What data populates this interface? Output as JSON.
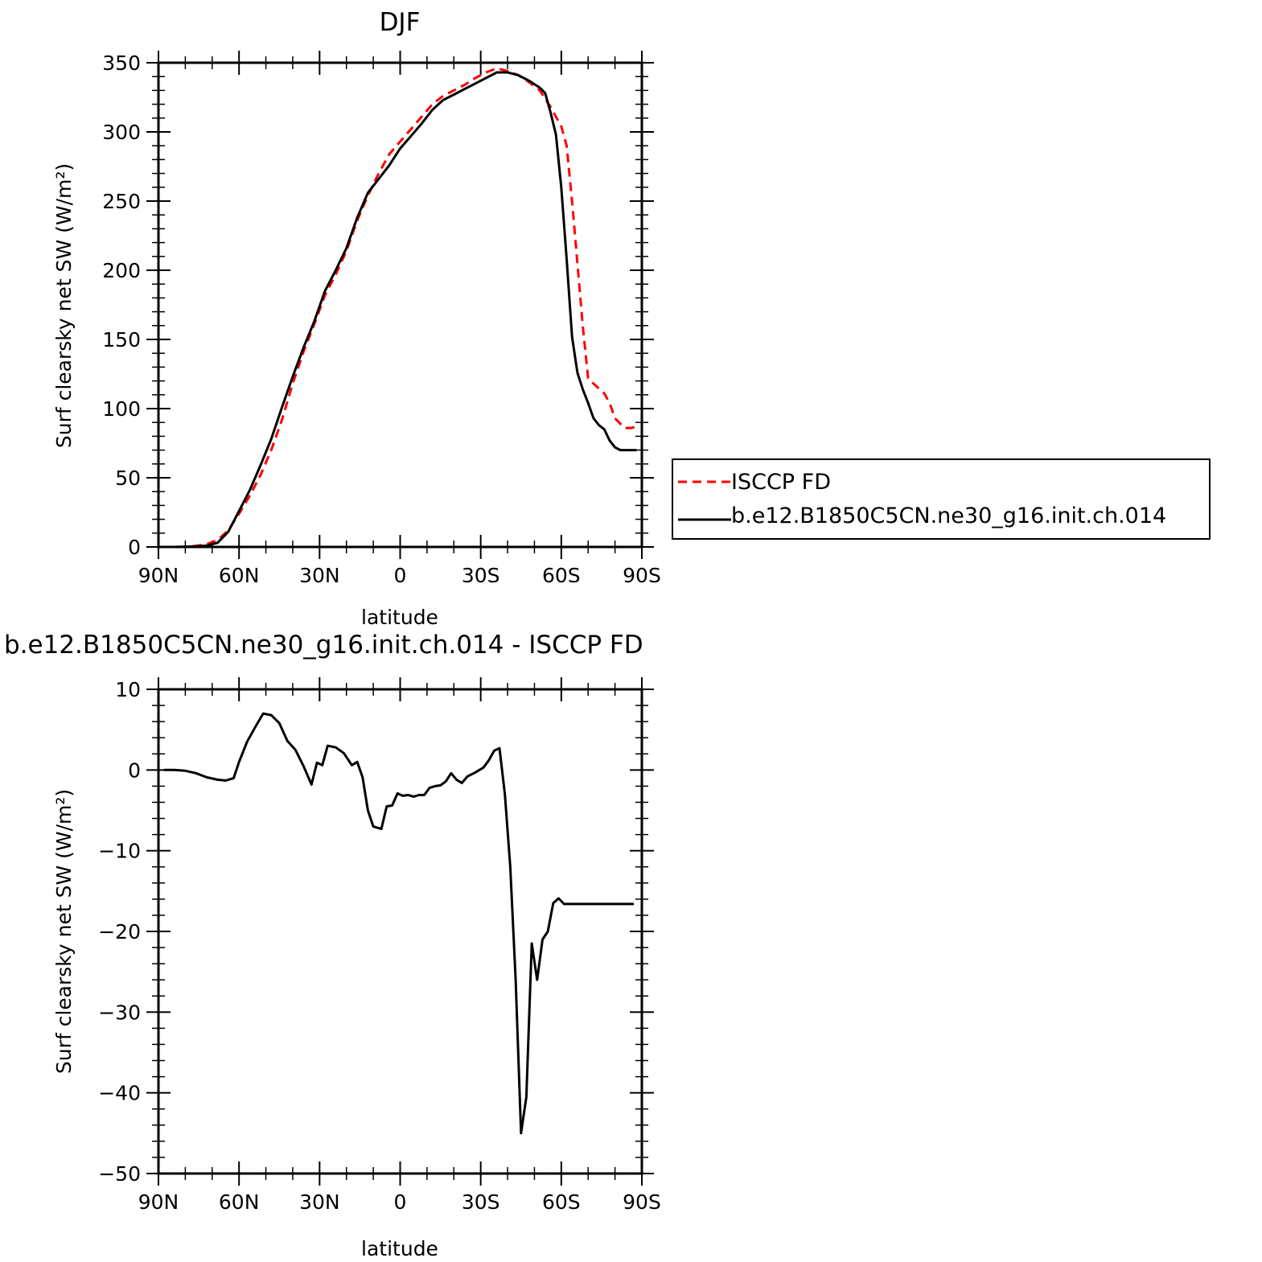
{
  "chart_data": [
    {
      "type": "line",
      "title": "DJF",
      "xlabel": "latitude",
      "ylabel": "Surf clearsky net SW (W/m²)",
      "xlim": [
        -90,
        90
      ],
      "ylim": [
        0,
        350
      ],
      "xticks": [
        -90,
        -60,
        -30,
        0,
        30,
        60,
        90
      ],
      "xtick_labels": [
        "90N",
        "60N",
        "30N",
        "0",
        "30S",
        "60S",
        "90S"
      ],
      "yticks": [
        0,
        50,
        100,
        150,
        200,
        250,
        300,
        350
      ],
      "ytick_labels": [
        "0",
        "50",
        "100",
        "150",
        "200",
        "250",
        "300",
        "350"
      ],
      "grid": false,
      "legend_position": "right",
      "series": [
        {
          "name": "ISCCP FD",
          "color": "#ff0000",
          "dash": "dashed",
          "x": [
            -88,
            -84,
            -80,
            -76,
            -72,
            -68,
            -64,
            -60,
            -56,
            -52,
            -48,
            -44,
            -40,
            -36,
            -32,
            -28,
            -24,
            -20,
            -16,
            -12,
            -8,
            -4,
            0,
            4,
            8,
            12,
            16,
            20,
            24,
            28,
            32,
            36,
            40,
            44,
            48,
            52,
            56,
            60,
            62,
            64,
            66,
            68,
            70,
            72,
            76,
            78,
            80,
            82,
            84,
            86,
            88
          ],
          "y": [
            0,
            0,
            0.2,
            0.8,
            2,
            5,
            12,
            24,
            37,
            52,
            70,
            92,
            118,
            141,
            161,
            182,
            197,
            214,
            236,
            254,
            270,
            284,
            293,
            302,
            311,
            320,
            326,
            330,
            334,
            339,
            343,
            346,
            344,
            341,
            336,
            330,
            318,
            304,
            290,
            250,
            205,
            160,
            122,
            118,
            111,
            104,
            93,
            89,
            86,
            86,
            87
          ]
        },
        {
          "name": "b.e12.B1850C5CN.ne30_g16.init.ch.014",
          "color": "#000000",
          "dash": "solid",
          "x": [
            -88,
            -84,
            -80,
            -76,
            -72,
            -68,
            -64,
            -60,
            -56,
            -52,
            -48,
            -44,
            -40,
            -36,
            -32,
            -28,
            -24,
            -20,
            -16,
            -12,
            -8,
            -4,
            0,
            4,
            8,
            12,
            16,
            20,
            24,
            28,
            32,
            36,
            40,
            44,
            48,
            52,
            54,
            56,
            58,
            60,
            62,
            64,
            66,
            68,
            70,
            72,
            74,
            76,
            78,
            80,
            82,
            84,
            86,
            88
          ],
          "y": [
            0,
            0,
            0.2,
            0.4,
            1,
            3,
            11,
            26,
            41,
            59,
            78,
            101,
            123,
            144,
            163,
            185,
            200,
            216,
            238,
            256,
            266,
            276,
            288,
            297,
            306,
            316,
            323,
            327,
            331,
            335,
            339,
            343,
            343,
            341,
            337,
            332,
            328,
            314,
            298,
            260,
            208,
            152,
            126,
            114,
            104,
            93,
            88,
            85,
            77,
            72,
            70,
            70,
            70,
            70
          ]
        }
      ]
    },
    {
      "type": "line",
      "title": "b.e12.B1850C5CN.ne30_g16.init.ch.014 - ISCCP FD",
      "xlabel": "latitude",
      "ylabel": "Surf clearsky net SW (W/m²)",
      "xlim": [
        -90,
        90
      ],
      "ylim": [
        -50,
        10
      ],
      "xticks": [
        -90,
        -60,
        -30,
        0,
        30,
        60,
        90
      ],
      "xtick_labels": [
        "90N",
        "60N",
        "30N",
        "0",
        "30S",
        "60S",
        "90S"
      ],
      "yticks": [
        -50,
        -40,
        -30,
        -20,
        -10,
        0,
        10
      ],
      "ytick_labels": [
        "−50",
        "−40",
        "−30",
        "−20",
        "−10",
        "0",
        "10"
      ],
      "grid": false,
      "series": [
        {
          "color": "#000000",
          "dash": "solid",
          "x": [
            -88,
            -84,
            -80,
            -76,
            -72,
            -68,
            -65,
            -62,
            -60,
            -57,
            -54,
            -51,
            -48,
            -45,
            -42,
            -39,
            -36,
            -33,
            -31,
            -29,
            -27,
            -24,
            -21,
            -18,
            -16,
            -14,
            -12,
            -10,
            -7,
            -5,
            -3,
            -1,
            1,
            3,
            5,
            7,
            9,
            11,
            13,
            15,
            17,
            19,
            21,
            23,
            25,
            28,
            31,
            33,
            35,
            37,
            39,
            41,
            43,
            45,
            47,
            49,
            51,
            53,
            55,
            57,
            59,
            61,
            63,
            65,
            67,
            69,
            71,
            73,
            75,
            77,
            79,
            81,
            83,
            85,
            87
          ],
          "y": [
            0,
            0,
            -0.1,
            -0.4,
            -0.9,
            -1.2,
            -1.3,
            -1,
            1,
            3.5,
            5.3,
            7,
            6.8,
            5.8,
            3.6,
            2.5,
            0.5,
            -1.8,
            0.9,
            0.6,
            3,
            2.8,
            2.1,
            0.6,
            1,
            -0.9,
            -5,
            -7,
            -7.3,
            -4.5,
            -4.4,
            -2.9,
            -3.2,
            -3.1,
            -3.3,
            -3.1,
            -3.1,
            -2.2,
            -2,
            -1.9,
            -1.4,
            -0.4,
            -1.2,
            -1.6,
            -0.8,
            -0.3,
            0.3,
            1.2,
            2.4,
            2.7,
            -3,
            -12,
            -26,
            -45,
            -40.5,
            -21.5,
            -26,
            -21,
            -20,
            -16.5,
            -15.9,
            -16.6,
            -16.6,
            -16.6,
            -16.6,
            -16.6,
            -16.6,
            -16.6,
            -16.6,
            -16.6,
            -16.6,
            -16.6,
            -16.6,
            -16.6,
            -16.6
          ]
        }
      ]
    }
  ]
}
